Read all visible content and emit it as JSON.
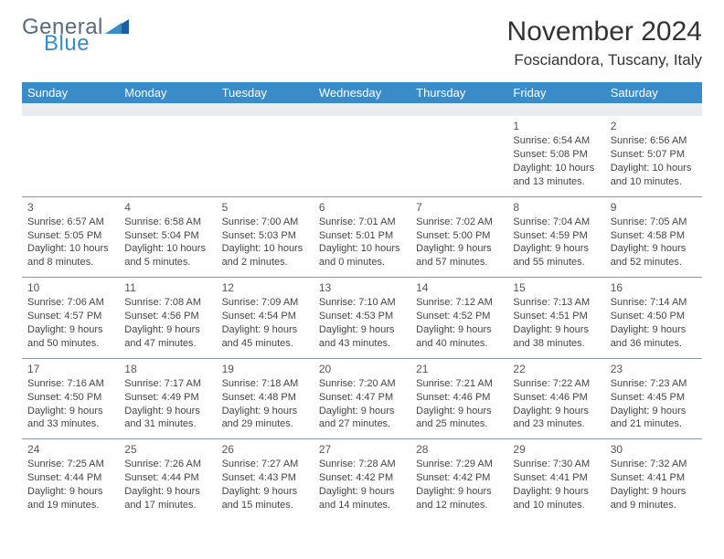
{
  "logo": {
    "textTop": "General",
    "textBottom": "Blue"
  },
  "title": "November 2024",
  "location": "Fosciandora, Tuscany, Italy",
  "colors": {
    "headerBar": "#3a8cc9",
    "subhead": "#e9edf1",
    "rowBorder": "#8a97a6",
    "text": "#333333",
    "logoGray": "#5b6a78",
    "logoBlue": "#3a8cc9"
  },
  "weekdays": [
    "Sunday",
    "Monday",
    "Tuesday",
    "Wednesday",
    "Thursday",
    "Friday",
    "Saturday"
  ],
  "weeks": [
    [
      null,
      null,
      null,
      null,
      null,
      {
        "day": "1",
        "sunrise": "Sunrise: 6:54 AM",
        "sunset": "Sunset: 5:08 PM",
        "daylight": "Daylight: 10 hours and 13 minutes."
      },
      {
        "day": "2",
        "sunrise": "Sunrise: 6:56 AM",
        "sunset": "Sunset: 5:07 PM",
        "daylight": "Daylight: 10 hours and 10 minutes."
      }
    ],
    [
      {
        "day": "3",
        "sunrise": "Sunrise: 6:57 AM",
        "sunset": "Sunset: 5:05 PM",
        "daylight": "Daylight: 10 hours and 8 minutes."
      },
      {
        "day": "4",
        "sunrise": "Sunrise: 6:58 AM",
        "sunset": "Sunset: 5:04 PM",
        "daylight": "Daylight: 10 hours and 5 minutes."
      },
      {
        "day": "5",
        "sunrise": "Sunrise: 7:00 AM",
        "sunset": "Sunset: 5:03 PM",
        "daylight": "Daylight: 10 hours and 2 minutes."
      },
      {
        "day": "6",
        "sunrise": "Sunrise: 7:01 AM",
        "sunset": "Sunset: 5:01 PM",
        "daylight": "Daylight: 10 hours and 0 minutes."
      },
      {
        "day": "7",
        "sunrise": "Sunrise: 7:02 AM",
        "sunset": "Sunset: 5:00 PM",
        "daylight": "Daylight: 9 hours and 57 minutes."
      },
      {
        "day": "8",
        "sunrise": "Sunrise: 7:04 AM",
        "sunset": "Sunset: 4:59 PM",
        "daylight": "Daylight: 9 hours and 55 minutes."
      },
      {
        "day": "9",
        "sunrise": "Sunrise: 7:05 AM",
        "sunset": "Sunset: 4:58 PM",
        "daylight": "Daylight: 9 hours and 52 minutes."
      }
    ],
    [
      {
        "day": "10",
        "sunrise": "Sunrise: 7:06 AM",
        "sunset": "Sunset: 4:57 PM",
        "daylight": "Daylight: 9 hours and 50 minutes."
      },
      {
        "day": "11",
        "sunrise": "Sunrise: 7:08 AM",
        "sunset": "Sunset: 4:56 PM",
        "daylight": "Daylight: 9 hours and 47 minutes."
      },
      {
        "day": "12",
        "sunrise": "Sunrise: 7:09 AM",
        "sunset": "Sunset: 4:54 PM",
        "daylight": "Daylight: 9 hours and 45 minutes."
      },
      {
        "day": "13",
        "sunrise": "Sunrise: 7:10 AM",
        "sunset": "Sunset: 4:53 PM",
        "daylight": "Daylight: 9 hours and 43 minutes."
      },
      {
        "day": "14",
        "sunrise": "Sunrise: 7:12 AM",
        "sunset": "Sunset: 4:52 PM",
        "daylight": "Daylight: 9 hours and 40 minutes."
      },
      {
        "day": "15",
        "sunrise": "Sunrise: 7:13 AM",
        "sunset": "Sunset: 4:51 PM",
        "daylight": "Daylight: 9 hours and 38 minutes."
      },
      {
        "day": "16",
        "sunrise": "Sunrise: 7:14 AM",
        "sunset": "Sunset: 4:50 PM",
        "daylight": "Daylight: 9 hours and 36 minutes."
      }
    ],
    [
      {
        "day": "17",
        "sunrise": "Sunrise: 7:16 AM",
        "sunset": "Sunset: 4:50 PM",
        "daylight": "Daylight: 9 hours and 33 minutes."
      },
      {
        "day": "18",
        "sunrise": "Sunrise: 7:17 AM",
        "sunset": "Sunset: 4:49 PM",
        "daylight": "Daylight: 9 hours and 31 minutes."
      },
      {
        "day": "19",
        "sunrise": "Sunrise: 7:18 AM",
        "sunset": "Sunset: 4:48 PM",
        "daylight": "Daylight: 9 hours and 29 minutes."
      },
      {
        "day": "20",
        "sunrise": "Sunrise: 7:20 AM",
        "sunset": "Sunset: 4:47 PM",
        "daylight": "Daylight: 9 hours and 27 minutes."
      },
      {
        "day": "21",
        "sunrise": "Sunrise: 7:21 AM",
        "sunset": "Sunset: 4:46 PM",
        "daylight": "Daylight: 9 hours and 25 minutes."
      },
      {
        "day": "22",
        "sunrise": "Sunrise: 7:22 AM",
        "sunset": "Sunset: 4:46 PM",
        "daylight": "Daylight: 9 hours and 23 minutes."
      },
      {
        "day": "23",
        "sunrise": "Sunrise: 7:23 AM",
        "sunset": "Sunset: 4:45 PM",
        "daylight": "Daylight: 9 hours and 21 minutes."
      }
    ],
    [
      {
        "day": "24",
        "sunrise": "Sunrise: 7:25 AM",
        "sunset": "Sunset: 4:44 PM",
        "daylight": "Daylight: 9 hours and 19 minutes."
      },
      {
        "day": "25",
        "sunrise": "Sunrise: 7:26 AM",
        "sunset": "Sunset: 4:44 PM",
        "daylight": "Daylight: 9 hours and 17 minutes."
      },
      {
        "day": "26",
        "sunrise": "Sunrise: 7:27 AM",
        "sunset": "Sunset: 4:43 PM",
        "daylight": "Daylight: 9 hours and 15 minutes."
      },
      {
        "day": "27",
        "sunrise": "Sunrise: 7:28 AM",
        "sunset": "Sunset: 4:42 PM",
        "daylight": "Daylight: 9 hours and 14 minutes."
      },
      {
        "day": "28",
        "sunrise": "Sunrise: 7:29 AM",
        "sunset": "Sunset: 4:42 PM",
        "daylight": "Daylight: 9 hours and 12 minutes."
      },
      {
        "day": "29",
        "sunrise": "Sunrise: 7:30 AM",
        "sunset": "Sunset: 4:41 PM",
        "daylight": "Daylight: 9 hours and 10 minutes."
      },
      {
        "day": "30",
        "sunrise": "Sunrise: 7:32 AM",
        "sunset": "Sunset: 4:41 PM",
        "daylight": "Daylight: 9 hours and 9 minutes."
      }
    ]
  ]
}
